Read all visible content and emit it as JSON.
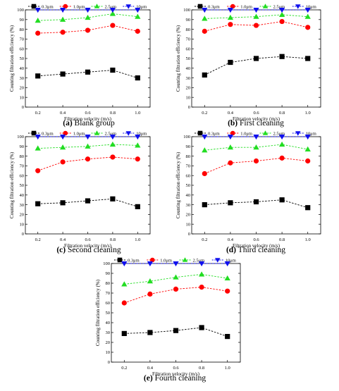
{
  "legend_labels": [
    "0.3μm",
    "1.0μm",
    "2.5μm",
    "10μm"
  ],
  "series_colors": [
    "#000000",
    "#ff0000",
    "#22dd22",
    "#1010ee"
  ],
  "series_markers": [
    "square",
    "circle",
    "triangle-up",
    "triangle-down"
  ],
  "chart_data": [
    {
      "type": "line",
      "panel_letter": "(a)",
      "panel_title": "Blank group",
      "xlabel": "Filtration velocity (m/s)",
      "ylabel": "Counting filtration efficiency (%)",
      "xlim": [
        0.1,
        1.1
      ],
      "ylim": [
        0,
        100
      ],
      "x": [
        0.2,
        0.4,
        0.6,
        0.8,
        1.0
      ],
      "x_tick_labels": [
        "0.2",
        "0.4",
        "0.6",
        "0.8",
        "1.0"
      ],
      "y_tick_labels": [
        "0",
        "10",
        "20",
        "30",
        "40",
        "50",
        "60",
        "70",
        "80",
        "90",
        "100"
      ],
      "legend_position": "top",
      "series": [
        {
          "name": "0.3μm",
          "values": [
            32,
            34,
            36,
            38,
            30
          ]
        },
        {
          "name": "1.0μm",
          "values": [
            76,
            77,
            79,
            84,
            78
          ]
        },
        {
          "name": "2.5μm",
          "values": [
            89,
            90,
            92,
            96,
            93
          ]
        },
        {
          "name": "10μm",
          "values": [
            100,
            100,
            100,
            100,
            100
          ]
        }
      ]
    },
    {
      "type": "line",
      "panel_letter": "(b)",
      "panel_title": "First cleaning",
      "xlabel": "Filtration velocity (m/s)",
      "ylabel": "Counting filtration efficiency (%)",
      "xlim": [
        0.1,
        1.1
      ],
      "ylim": [
        0,
        100
      ],
      "x": [
        0.2,
        0.4,
        0.6,
        0.8,
        1.0
      ],
      "x_tick_labels": [
        "0.2",
        "0.4",
        "0.6",
        "0.8",
        "1.0"
      ],
      "y_tick_labels": [
        "0",
        "10",
        "20",
        "30",
        "40",
        "50",
        "60",
        "70",
        "80",
        "90",
        "100"
      ],
      "legend_position": "top",
      "series": [
        {
          "name": "0.3μm",
          "values": [
            33,
            46,
            50,
            52,
            50
          ]
        },
        {
          "name": "1.0μm",
          "values": [
            78,
            85,
            84,
            88,
            82
          ]
        },
        {
          "name": "2.5μm",
          "values": [
            91,
            92,
            93,
            95,
            93
          ]
        },
        {
          "name": "10μm",
          "values": [
            100,
            100,
            100,
            100,
            100
          ]
        }
      ]
    },
    {
      "type": "line",
      "panel_letter": "(c)",
      "panel_title": "Second cleaning",
      "xlabel": "Filtration velocity (m/s)",
      "ylabel": "Counting filtration efficiency (%)",
      "xlim": [
        0.1,
        1.1
      ],
      "ylim": [
        0,
        100
      ],
      "x": [
        0.2,
        0.4,
        0.6,
        0.8,
        1.0
      ],
      "x_tick_labels": [
        "0.2",
        "0.4",
        "0.6",
        "0.8",
        "1.0"
      ],
      "y_tick_labels": [
        "0",
        "10",
        "20",
        "30",
        "40",
        "50",
        "60",
        "70",
        "80",
        "90",
        "100"
      ],
      "legend_position": "top",
      "series": [
        {
          "name": "0.3μm",
          "values": [
            31,
            32,
            34,
            36,
            28
          ]
        },
        {
          "name": "1.0μm",
          "values": [
            65,
            74,
            77,
            79,
            77
          ]
        },
        {
          "name": "2.5μm",
          "values": [
            88,
            89,
            90,
            92,
            91
          ]
        },
        {
          "name": "10μm",
          "values": [
            100,
            100,
            100,
            100,
            100
          ]
        }
      ]
    },
    {
      "type": "line",
      "panel_letter": "(d)",
      "panel_title": "Third cleaning",
      "xlabel": "Filtration velocity (m/s)",
      "ylabel": "Counting filtration efficiency (%)",
      "xlim": [
        0.1,
        1.1
      ],
      "ylim": [
        0,
        100
      ],
      "x": [
        0.2,
        0.4,
        0.6,
        0.8,
        1.0
      ],
      "x_tick_labels": [
        "0.2",
        "0.4",
        "0.6",
        "0.8",
        "1.0"
      ],
      "y_tick_labels": [
        "0",
        "10",
        "20",
        "30",
        "40",
        "50",
        "60",
        "70",
        "80",
        "90",
        "100"
      ],
      "legend_position": "top",
      "series": [
        {
          "name": "0.3μm",
          "values": [
            30,
            32,
            33,
            35,
            27
          ]
        },
        {
          "name": "1.0μm",
          "values": [
            62,
            73,
            75,
            78,
            75
          ]
        },
        {
          "name": "2.5μm",
          "values": [
            86,
            89,
            89,
            92,
            87
          ]
        },
        {
          "name": "10μm",
          "values": [
            100,
            100,
            100,
            100,
            100
          ]
        }
      ]
    },
    {
      "type": "line",
      "panel_letter": "(e)",
      "panel_title": "Fourth cleaning",
      "xlabel": "Filtration velocity (m/s)",
      "ylabel": "Counting filtration efficiency (%)",
      "xlim": [
        0.1,
        1.1
      ],
      "ylim": [
        0,
        100
      ],
      "x": [
        0.2,
        0.4,
        0.6,
        0.8,
        1.0
      ],
      "x_tick_labels": [
        "0.2",
        "0.4",
        "0.6",
        "0.8",
        "1.0"
      ],
      "y_tick_labels": [
        "0",
        "10",
        "20",
        "30",
        "40",
        "50",
        "60",
        "70",
        "80",
        "90",
        "100"
      ],
      "legend_position": "top",
      "series": [
        {
          "name": "0.3μm",
          "values": [
            29,
            30,
            32,
            35,
            26
          ]
        },
        {
          "name": "1.0μm",
          "values": [
            60,
            69,
            74,
            76,
            72
          ]
        },
        {
          "name": "2.5μm",
          "values": [
            79,
            82,
            86,
            89,
            85
          ]
        },
        {
          "name": "10μm",
          "values": [
            100,
            100,
            100,
            100,
            100
          ]
        }
      ]
    }
  ]
}
